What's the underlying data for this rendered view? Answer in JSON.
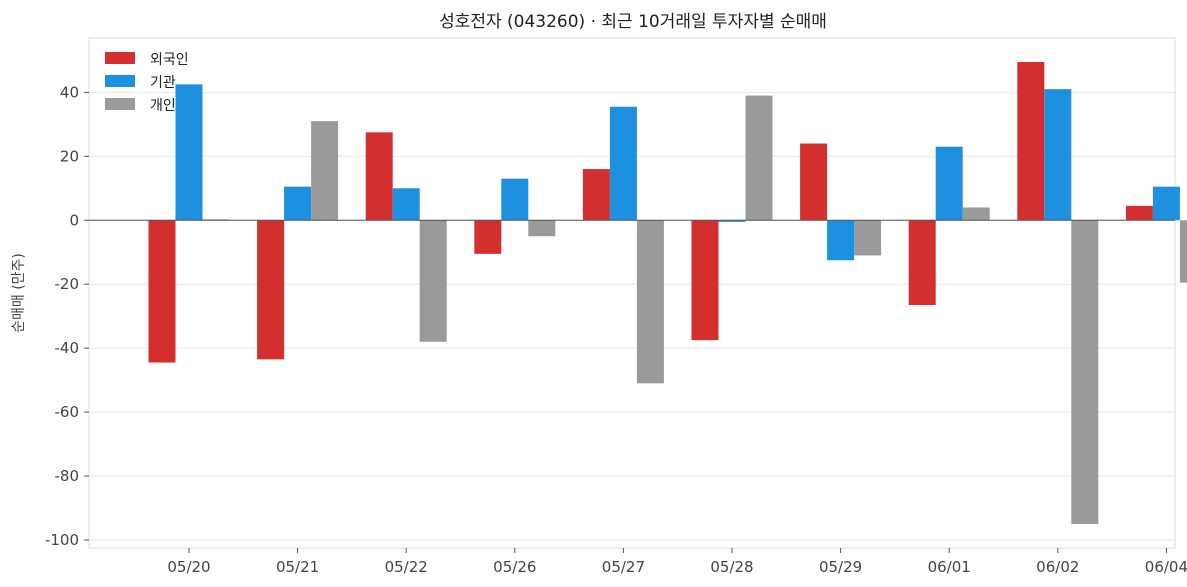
{
  "chart_data": {
    "type": "bar",
    "title": "성호전자 (043260) · 최근 10거래일 투자자별 순매매",
    "xlabel": "",
    "ylabel": "순매매 (만주)",
    "categories": [
      "05/20",
      "05/21",
      "05/22",
      "05/26",
      "05/27",
      "05/28",
      "05/29",
      "06/01",
      "06/02",
      "06/04"
    ],
    "series": [
      {
        "name": "외국인",
        "color": "#d32f2f",
        "values": [
          -44.5,
          -43.5,
          27.5,
          -10.5,
          16,
          -37.5,
          24,
          -26.5,
          49.5,
          4.5
        ]
      },
      {
        "name": "기관",
        "color": "#1e90e0",
        "values": [
          42.5,
          10.5,
          10,
          13,
          35.5,
          -0.5,
          -12.5,
          23,
          41,
          10.5
        ]
      },
      {
        "name": "개인",
        "color": "#9a9a9a",
        "values": [
          0.3,
          31,
          -38,
          -5,
          -51,
          39,
          -11,
          4,
          -95,
          -19.5
        ]
      }
    ],
    "yticks": [
      40,
      20,
      0,
      -20,
      -40,
      -60,
      -80,
      -100
    ],
    "ytick_labels": [
      "40",
      "20",
      "0",
      "-20",
      "-40",
      "-60",
      "-80",
      "-100"
    ],
    "ylim": [
      -102.5,
      57
    ],
    "grid": true,
    "legend_position": "top-left"
  }
}
